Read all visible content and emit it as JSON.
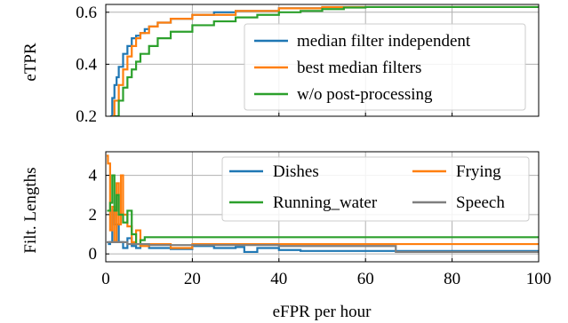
{
  "chart_data": [
    {
      "type": "line",
      "ylabel": "eTPR",
      "xlim": [
        0,
        100
      ],
      "ylim": [
        0.2,
        0.63
      ],
      "yticks": [
        0.2,
        0.4,
        0.6
      ],
      "xticks": [
        0,
        20,
        40,
        60,
        80,
        100
      ],
      "grid": true,
      "legend": "lower-right",
      "series": [
        {
          "name": "median filter independent",
          "color": "#1f77b4",
          "x": [
            1,
            1.5,
            2,
            2.5,
            3,
            4,
            5,
            6,
            7,
            8,
            9,
            10,
            12,
            15,
            20,
            25,
            30,
            40,
            50,
            60,
            100
          ],
          "y": [
            0.2,
            0.27,
            0.32,
            0.35,
            0.39,
            0.44,
            0.47,
            0.5,
            0.51,
            0.52,
            0.535,
            0.545,
            0.56,
            0.575,
            0.59,
            0.6,
            0.605,
            0.615,
            0.62,
            0.62,
            0.62
          ]
        },
        {
          "name": "best median filters",
          "color": "#ff7f0e",
          "x": [
            1.5,
            2,
            3,
            4,
            5,
            6,
            7,
            8,
            10,
            12,
            15,
            20,
            30,
            40,
            50,
            60,
            100
          ],
          "y": [
            0.2,
            0.26,
            0.32,
            0.38,
            0.43,
            0.47,
            0.5,
            0.52,
            0.545,
            0.56,
            0.575,
            0.59,
            0.605,
            0.615,
            0.62,
            0.62,
            0.62
          ]
        },
        {
          "name": "w/o post-processing",
          "color": "#2ca02c",
          "x": [
            2,
            3,
            4,
            5,
            6,
            7,
            8,
            10,
            12,
            15,
            20,
            25,
            30,
            35,
            40,
            45,
            50,
            55,
            60,
            100
          ],
          "y": [
            0.2,
            0.26,
            0.31,
            0.35,
            0.38,
            0.41,
            0.44,
            0.47,
            0.5,
            0.525,
            0.55,
            0.565,
            0.58,
            0.59,
            0.6,
            0.605,
            0.612,
            0.618,
            0.62,
            0.62
          ]
        }
      ]
    },
    {
      "type": "line",
      "ylabel": "Filt. Lengths",
      "xlabel": "eFPR per hour",
      "xlim": [
        0,
        100
      ],
      "ylim": [
        -0.4,
        5.2
      ],
      "yticks": [
        0,
        2,
        4
      ],
      "xticks": [
        0,
        20,
        40,
        60,
        80,
        100
      ],
      "grid": true,
      "legend": "top-right",
      "series": [
        {
          "name": "Dishes",
          "color": "#1f77b4",
          "x": [
            0.5,
            1,
            1.5,
            2,
            3,
            4,
            5,
            6,
            7,
            8,
            10,
            15,
            20,
            25,
            30,
            32,
            35,
            40,
            45,
            100
          ],
          "y": [
            0.5,
            0.6,
            2.2,
            1.5,
            0.6,
            0.3,
            0.8,
            0.4,
            0.3,
            0.5,
            0.3,
            0.25,
            0.4,
            0.3,
            0.35,
            0.1,
            0.3,
            0.2,
            0.15,
            0.15
          ]
        },
        {
          "name": "Frying",
          "color": "#ff7f0e",
          "x": [
            0.2,
            0.5,
            1,
            1.5,
            2,
            2.5,
            3,
            3.5,
            4,
            5,
            6,
            7,
            8,
            10,
            15,
            20,
            30,
            40,
            60,
            100
          ],
          "y": [
            5.0,
            4.6,
            1.2,
            2.4,
            0.6,
            3.6,
            1.5,
            4.0,
            2.0,
            1.4,
            0.6,
            1.2,
            0.4,
            0.5,
            0.3,
            0.5,
            0.5,
            0.5,
            0.5,
            0.5
          ]
        },
        {
          "name": "Running_water",
          "color": "#2ca02c",
          "x": [
            0.3,
            1,
            1.5,
            2,
            2.5,
            3,
            4,
            5,
            6,
            7,
            8,
            9,
            10,
            20,
            50,
            100
          ],
          "y": [
            2.2,
            2.6,
            4.0,
            2.2,
            3.0,
            2.0,
            1.6,
            2.2,
            1.0,
            0.5,
            0.7,
            0.85,
            0.85,
            0.85,
            0.85,
            0.85
          ]
        },
        {
          "name": "Speech",
          "color": "#7f7f7f",
          "x": [
            0.2,
            1,
            3,
            5,
            10,
            20,
            30,
            40,
            50,
            60,
            66,
            67,
            100
          ],
          "y": [
            0.6,
            0.6,
            0.6,
            0.5,
            0.45,
            0.45,
            0.45,
            0.4,
            0.4,
            0.4,
            0.4,
            0.1,
            0.1
          ]
        }
      ]
    }
  ]
}
